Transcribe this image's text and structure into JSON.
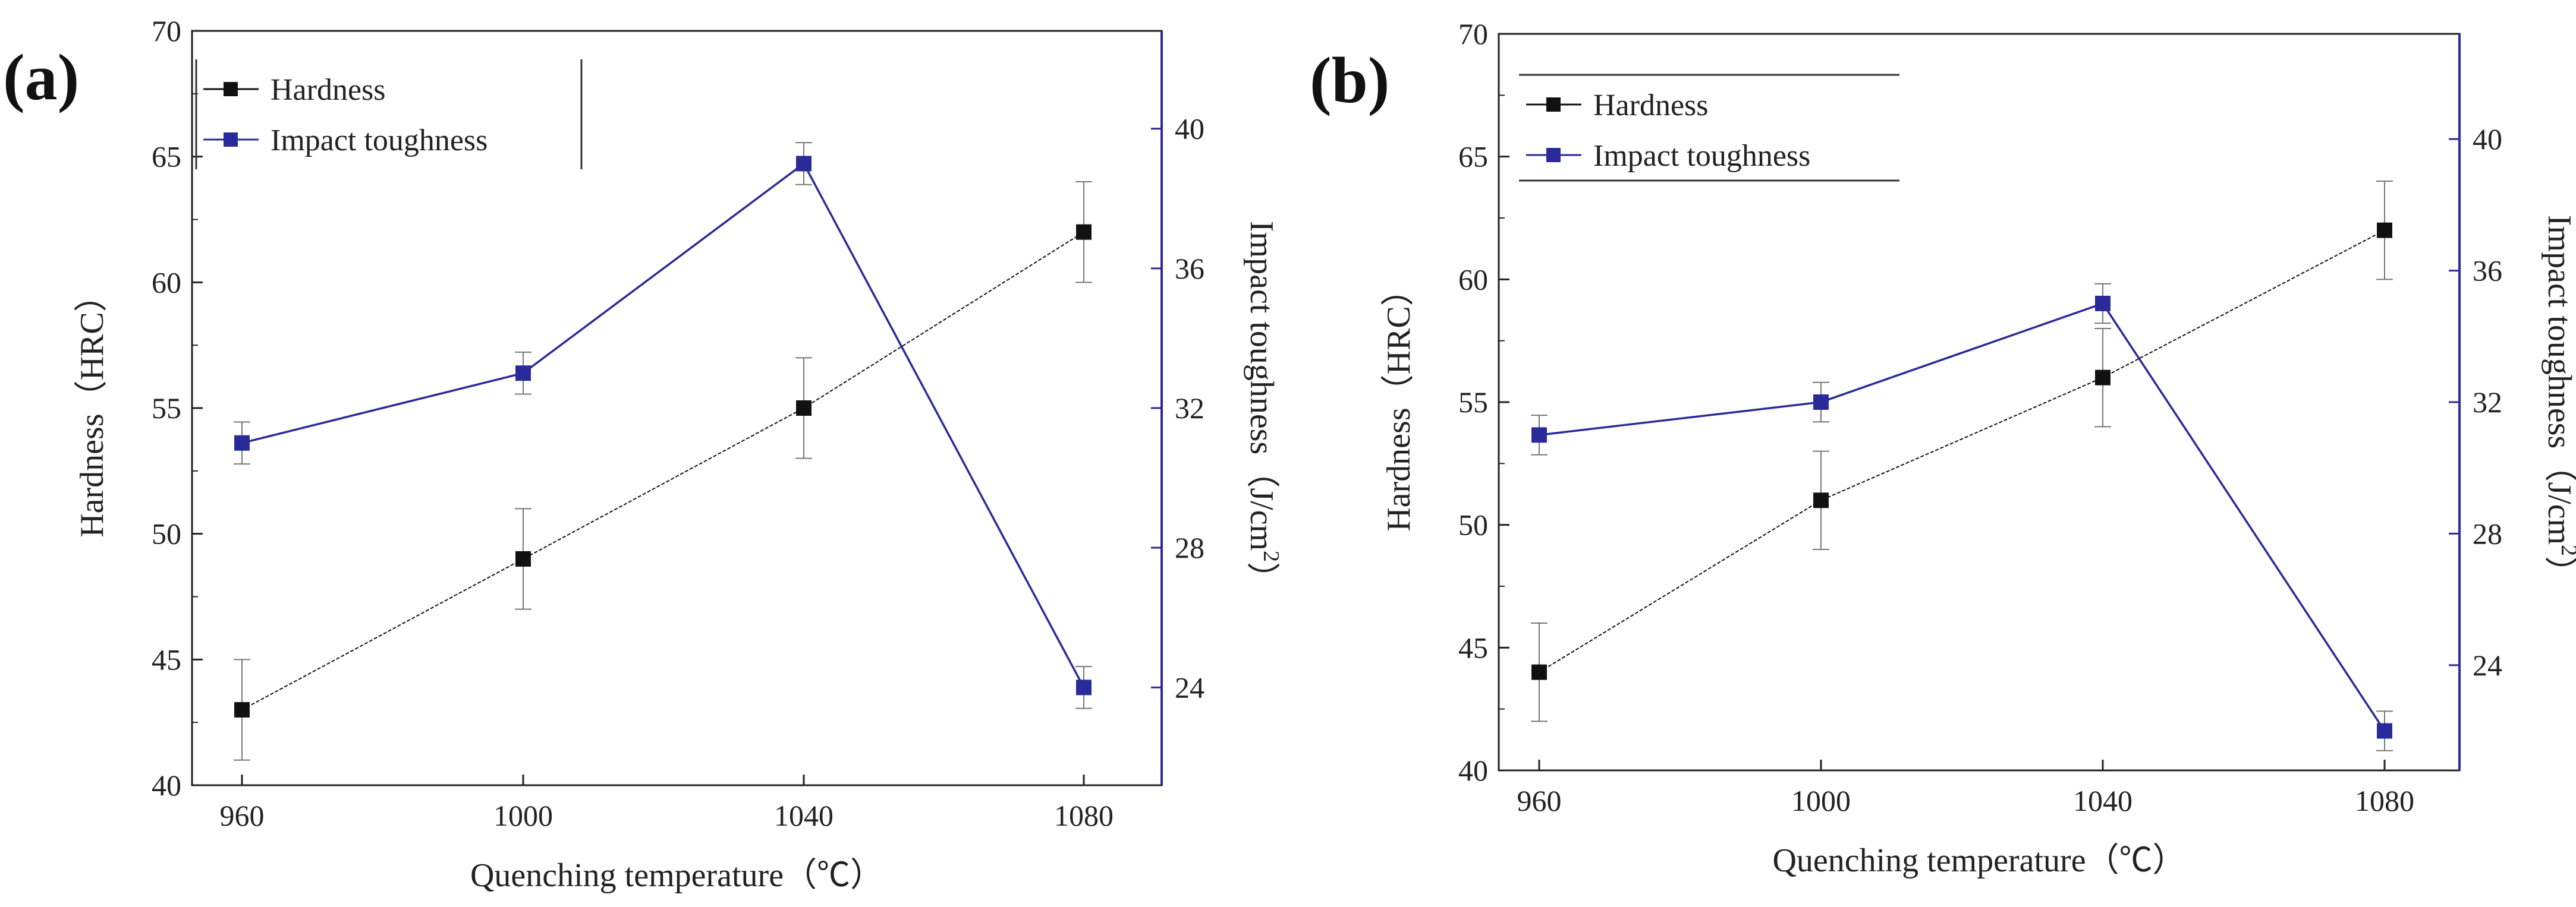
{
  "chart_data": [
    {
      "type": "line",
      "panel_label": "(a)",
      "x": [
        "960",
        "1000",
        "1040",
        "1080"
      ],
      "xlabel": "Quenching temperature（℃）",
      "ylabel_left": "Hardness（HRC）",
      "ylabel_right": "Impact toughness（J/cm",
      "ylabel_right_sup": "2",
      "ylabel_right_close": "）",
      "left_ylim": [
        40,
        70
      ],
      "left_yticks": [
        "40",
        "45",
        "50",
        "55",
        "60",
        "65",
        "70"
      ],
      "right_ylim": [
        21.2,
        42.8
      ],
      "right_yticks": [
        "24",
        "28",
        "32",
        "36",
        "40"
      ],
      "legend": [
        "Hardness",
        "Impact toughness"
      ],
      "series": [
        {
          "name": "Hardness",
          "axis": "left",
          "color": "#111111",
          "values": [
            43,
            49,
            55,
            62
          ],
          "errors": [
            2,
            2,
            2,
            2
          ]
        },
        {
          "name": "Impact toughness",
          "axis": "right",
          "color": "#2a2a9a",
          "values": [
            31,
            33,
            39,
            24
          ],
          "errors": [
            0.6,
            0.6,
            0.6,
            0.6
          ]
        }
      ]
    },
    {
      "type": "line",
      "panel_label": "(b)",
      "x": [
        "960",
        "1000",
        "1040",
        "1080"
      ],
      "xlabel": "Quenching temperature（℃）",
      "ylabel_left": "Hardness（HRC）",
      "ylabel_right": "Impact toughness（J/cm",
      "ylabel_right_sup": "2",
      "ylabel_right_close": "）",
      "left_ylim": [
        40,
        70
      ],
      "left_yticks": [
        "40",
        "45",
        "50",
        "55",
        "60",
        "65",
        "70"
      ],
      "right_ylim": [
        20.8,
        43.2
      ],
      "right_yticks": [
        "24",
        "28",
        "32",
        "36",
        "40"
      ],
      "legend": [
        "Hardness",
        "Impact toughness"
      ],
      "series": [
        {
          "name": "Hardness",
          "axis": "left",
          "color": "#111111",
          "values": [
            44,
            51,
            56,
            62
          ],
          "errors": [
            2,
            2,
            2,
            2
          ]
        },
        {
          "name": "Impact toughness",
          "axis": "right",
          "color": "#2a2a9a",
          "values": [
            31,
            32,
            35,
            22
          ],
          "errors": [
            0.6,
            0.6,
            0.6,
            0.6
          ]
        }
      ]
    }
  ]
}
